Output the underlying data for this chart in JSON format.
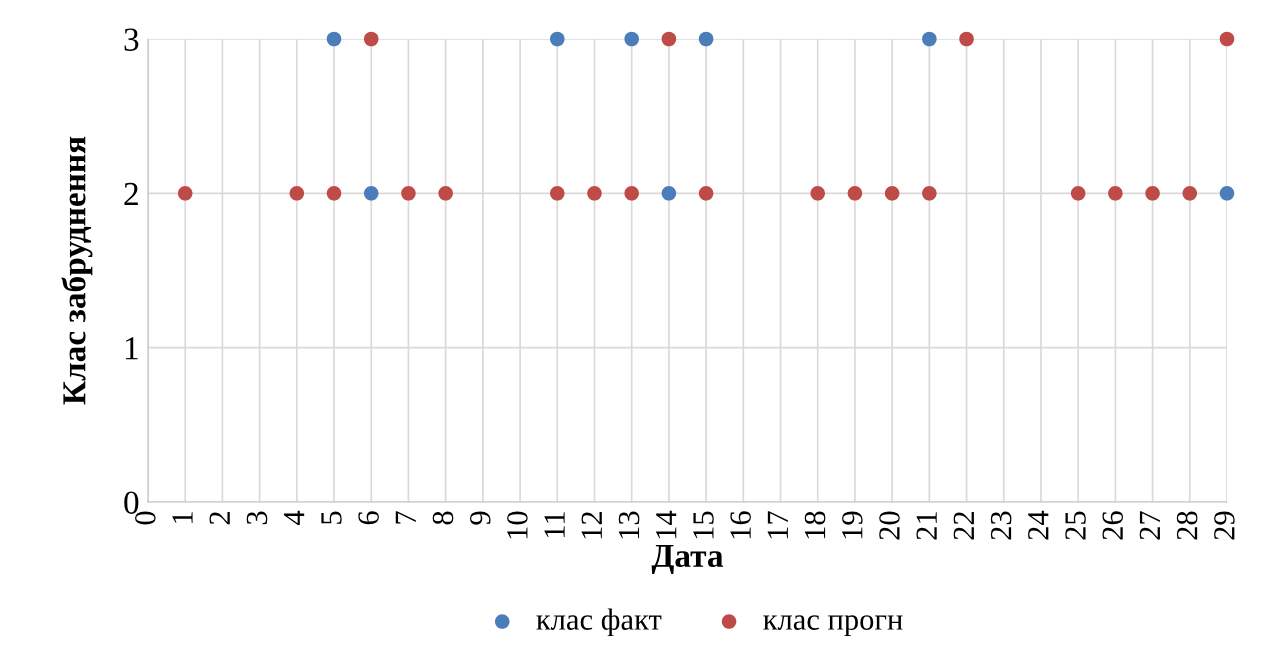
{
  "chart_data": {
    "type": "scatter",
    "xlabel": "Дата",
    "ylabel": "Клас забруднення",
    "xlim": [
      0,
      29
    ],
    "xticks": [
      0,
      1,
      2,
      3,
      4,
      5,
      6,
      7,
      8,
      9,
      10,
      11,
      12,
      13,
      14,
      15,
      16,
      17,
      18,
      19,
      20,
      21,
      22,
      23,
      24,
      25,
      26,
      27,
      28,
      29
    ],
    "ylim": [
      0,
      3
    ],
    "yticks": [
      0,
      1,
      2,
      3
    ],
    "grid": true,
    "legend": "bottom",
    "marker": "circle",
    "series": [
      {
        "name": "клас факт",
        "color": "#4a7ebb",
        "x": [
          5,
          6,
          11,
          13,
          14,
          15,
          21,
          29
        ],
        "values": [
          3,
          2,
          3,
          3,
          2,
          3,
          3,
          2
        ]
      },
      {
        "name": "клас прогн",
        "color": "#be4b48",
        "x": [
          1,
          4,
          5,
          6,
          7,
          8,
          11,
          12,
          13,
          14,
          15,
          18,
          19,
          20,
          21,
          22,
          25,
          26,
          27,
          28,
          29
        ],
        "values": [
          2,
          2,
          2,
          3,
          2,
          2,
          2,
          2,
          2,
          3,
          2,
          2,
          2,
          2,
          2,
          3,
          2,
          2,
          2,
          2,
          3
        ]
      }
    ]
  }
}
